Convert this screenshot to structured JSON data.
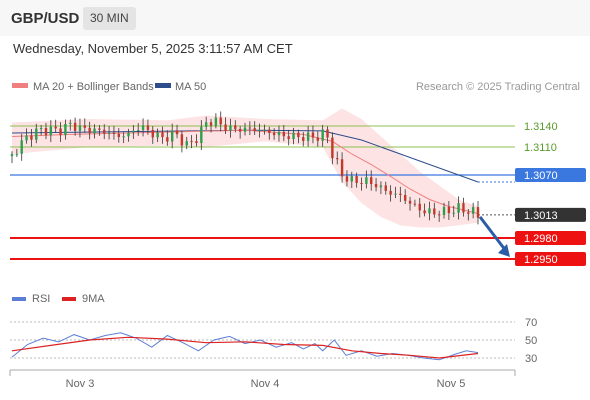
{
  "header": {
    "symbol": "GBP/USD",
    "interval": "30 MIN",
    "datetime": "Wednesday, November 5, 2025 3:11:57 AM CET",
    "copyright": "Research © 2025 Trading Central"
  },
  "legend": {
    "bollinger": "MA 20 + Bollinger Bands",
    "ma50": "MA 50",
    "rsi": "RSI",
    "rsi_ma": "9MA"
  },
  "colors": {
    "bollinger": "#f08080",
    "bollinger_band": "#fde3e3",
    "ma50": "#2e4d8c",
    "resistance": "#8cc152",
    "pivot": "#3a78e0",
    "support": "#ee1111",
    "last_price": "#333333",
    "candle_up": "#2e9e4e",
    "candle_down": "#c0392b",
    "arrow": "#2a5ca8",
    "rsi": "#5b7fd6",
    "rsi_ma": "#dd2222"
  },
  "chart_data": [
    {
      "type": "candlestick",
      "x_ticks": [
        "Nov 3",
        "Nov 4",
        "Nov 5"
      ],
      "ylim": [
        1.292,
        1.317
      ],
      "levels": [
        {
          "label": "1.3140",
          "value": 1.314,
          "kind": "resistance"
        },
        {
          "label": "1.3110",
          "value": 1.311,
          "kind": "resistance"
        },
        {
          "label": "1.3070",
          "value": 1.307,
          "kind": "pivot"
        },
        {
          "label": "1.3013",
          "value": 1.3013,
          "kind": "last_price"
        },
        {
          "label": "1.2980",
          "value": 1.298,
          "kind": "support"
        },
        {
          "label": "1.2950",
          "value": 1.295,
          "kind": "support"
        }
      ],
      "trend": "down",
      "price_path": [
        [
          0,
          1.3097
        ],
        [
          6,
          1.312
        ],
        [
          12,
          1.3132
        ],
        [
          18,
          1.3135
        ],
        [
          24,
          1.3133
        ],
        [
          30,
          1.3142
        ],
        [
          36,
          1.3136
        ],
        [
          42,
          1.3134
        ],
        [
          48,
          1.3132
        ],
        [
          54,
          1.3125
        ],
        [
          60,
          1.3128
        ],
        [
          66,
          1.314
        ],
        [
          72,
          1.313
        ],
        [
          78,
          1.3122
        ],
        [
          84,
          1.313
        ],
        [
          90,
          1.3112
        ],
        [
          96,
          1.3125
        ],
        [
          100,
          1.3145
        ],
        [
          104,
          1.3148
        ],
        [
          110,
          1.3138
        ],
        [
          116,
          1.3135
        ],
        [
          122,
          1.3136
        ],
        [
          128,
          1.3134
        ],
        [
          134,
          1.313
        ],
        [
          140,
          1.3126
        ],
        [
          146,
          1.3125
        ],
        [
          152,
          1.3124
        ],
        [
          158,
          1.3125
        ],
        [
          162,
          1.313
        ],
        [
          165,
          1.31
        ],
        [
          170,
          1.307
        ],
        [
          176,
          1.306
        ],
        [
          182,
          1.3062
        ],
        [
          188,
          1.3055
        ],
        [
          194,
          1.3045
        ],
        [
          200,
          1.304
        ],
        [
          206,
          1.3028
        ],
        [
          212,
          1.3018
        ],
        [
          218,
          1.3016
        ],
        [
          224,
          1.3018
        ],
        [
          230,
          1.3022
        ],
        [
          236,
          1.3018
        ],
        [
          240,
          1.3013
        ]
      ],
      "ma50": [
        [
          0,
          1.313
        ],
        [
          60,
          1.3132
        ],
        [
          120,
          1.3134
        ],
        [
          160,
          1.3133
        ],
        [
          180,
          1.312
        ],
        [
          200,
          1.31
        ],
        [
          215,
          1.3085
        ],
        [
          230,
          1.307
        ],
        [
          240,
          1.306
        ]
      ],
      "ma20": [
        [
          0,
          1.3125
        ],
        [
          30,
          1.3128
        ],
        [
          60,
          1.313
        ],
        [
          90,
          1.3132
        ],
        [
          120,
          1.3134
        ],
        [
          150,
          1.3128
        ],
        [
          165,
          1.3118
        ],
        [
          175,
          1.31
        ],
        [
          185,
          1.3085
        ],
        [
          195,
          1.3068
        ],
        [
          205,
          1.305
        ],
        [
          215,
          1.3035
        ],
        [
          225,
          1.3025
        ],
        [
          240,
          1.3015
        ]
      ],
      "bollinger_upper": [
        [
          0,
          1.3145
        ],
        [
          40,
          1.315
        ],
        [
          80,
          1.3148
        ],
        [
          100,
          1.3155
        ],
        [
          130,
          1.315
        ],
        [
          160,
          1.3148
        ],
        [
          170,
          1.3165
        ],
        [
          180,
          1.315
        ],
        [
          190,
          1.3125
        ],
        [
          200,
          1.31
        ],
        [
          210,
          1.3075
        ],
        [
          220,
          1.3055
        ],
        [
          230,
          1.3035
        ],
        [
          240,
          1.3025
        ]
      ],
      "bollinger_lower": [
        [
          0,
          1.31
        ],
        [
          40,
          1.311
        ],
        [
          80,
          1.3112
        ],
        [
          100,
          1.311
        ],
        [
          130,
          1.3118
        ],
        [
          160,
          1.311
        ],
        [
          170,
          1.306
        ],
        [
          180,
          1.303
        ],
        [
          190,
          1.301
        ],
        [
          200,
          1.2998
        ],
        [
          210,
          1.2995
        ],
        [
          220,
          1.2995
        ],
        [
          230,
          1.2998
        ],
        [
          240,
          1.3002
        ]
      ]
    },
    {
      "type": "line",
      "ylim": [
        20,
        80
      ],
      "y_ticks": [
        "70",
        "50",
        "30"
      ],
      "series": [
        {
          "name": "RSI",
          "values": [
            [
              0,
              31
            ],
            [
              8,
              45
            ],
            [
              16,
              52
            ],
            [
              24,
              48
            ],
            [
              32,
              56
            ],
            [
              40,
              50
            ],
            [
              48,
              55
            ],
            [
              56,
              58
            ],
            [
              64,
              52
            ],
            [
              72,
              42
            ],
            [
              80,
              55
            ],
            [
              88,
              47
            ],
            [
              96,
              38
            ],
            [
              104,
              50
            ],
            [
              112,
              54
            ],
            [
              120,
              46
            ],
            [
              128,
              50
            ],
            [
              136,
              42
            ],
            [
              144,
              47
            ],
            [
              150,
              40
            ],
            [
              156,
              46
            ],
            [
              160,
              38
            ],
            [
              166,
              50
            ],
            [
              172,
              33
            ],
            [
              180,
              38
            ],
            [
              188,
              32
            ],
            [
              196,
              35
            ],
            [
              204,
              33
            ],
            [
              212,
              30
            ],
            [
              220,
              28
            ],
            [
              228,
              34
            ],
            [
              234,
              38
            ],
            [
              240,
              36
            ]
          ]
        },
        {
          "name": "9MA",
          "values": [
            [
              0,
              38
            ],
            [
              20,
              44
            ],
            [
              40,
              50
            ],
            [
              60,
              53
            ],
            [
              80,
              51
            ],
            [
              100,
              47
            ],
            [
              120,
              48
            ],
            [
              140,
              45
            ],
            [
              160,
              44
            ],
            [
              175,
              38
            ],
            [
              190,
              35
            ],
            [
              205,
              33
            ],
            [
              220,
              30
            ],
            [
              240,
              35
            ]
          ]
        }
      ]
    }
  ]
}
